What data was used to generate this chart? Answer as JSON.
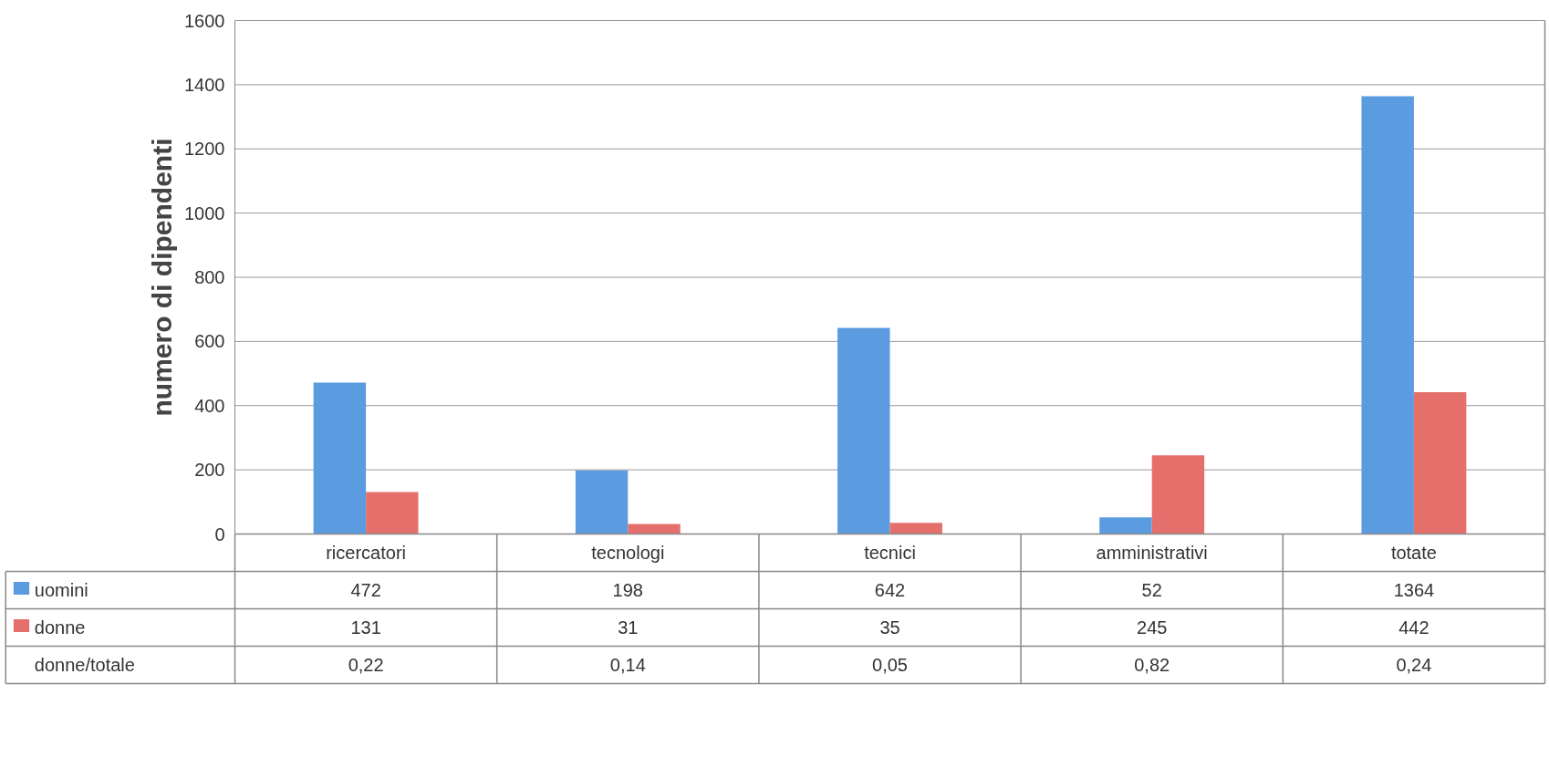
{
  "chart_data": {
    "type": "bar",
    "ylabel": "numero di dipendenti",
    "categories": [
      "ricercatori",
      "tecnologi",
      "tecnici",
      "amministrativi",
      "totate"
    ],
    "series": [
      {
        "name": "uomini",
        "color": "#5b9be0",
        "values": [
          472,
          198,
          642,
          52,
          1364
        ]
      },
      {
        "name": "donne",
        "color": "#e5706b",
        "values": [
          131,
          31,
          35,
          245,
          442
        ]
      }
    ],
    "ylim": [
      0,
      1600
    ],
    "yticks": [
      0,
      200,
      400,
      600,
      800,
      1000,
      1200,
      1400,
      1600
    ],
    "grid": "y",
    "legend": "bottom",
    "data_labels": true,
    "annotations": [
      "donne/totale",
      "0,22",
      "0,14",
      "0,05",
      "0,82",
      "0,24"
    ]
  }
}
